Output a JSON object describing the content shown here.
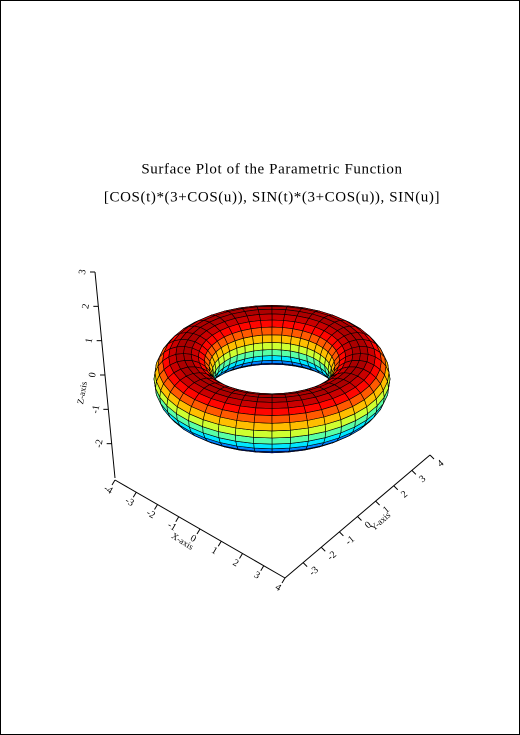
{
  "chart_data": {
    "type": "surface",
    "title": "Surface Plot of the Parametric Function",
    "subtitle": "[COS(t)*(3+COS(u)), SIN(t)*(3+COS(u)), SIN(u)]",
    "xlabel": "X-axis",
    "ylabel": "Y-axis",
    "zlabel": "Z-axis",
    "xlim": [
      -4,
      4
    ],
    "xticks": [
      -4,
      -3,
      -2,
      -1,
      0,
      1,
      2,
      3,
      4
    ],
    "ylim": [
      -4,
      4
    ],
    "yticks": [
      -3,
      -2,
      -1,
      0,
      1,
      2,
      3,
      4
    ],
    "zlim": [
      -3,
      3
    ],
    "zticks": [
      -2,
      -1,
      0,
      1,
      2,
      3
    ]
  }
}
